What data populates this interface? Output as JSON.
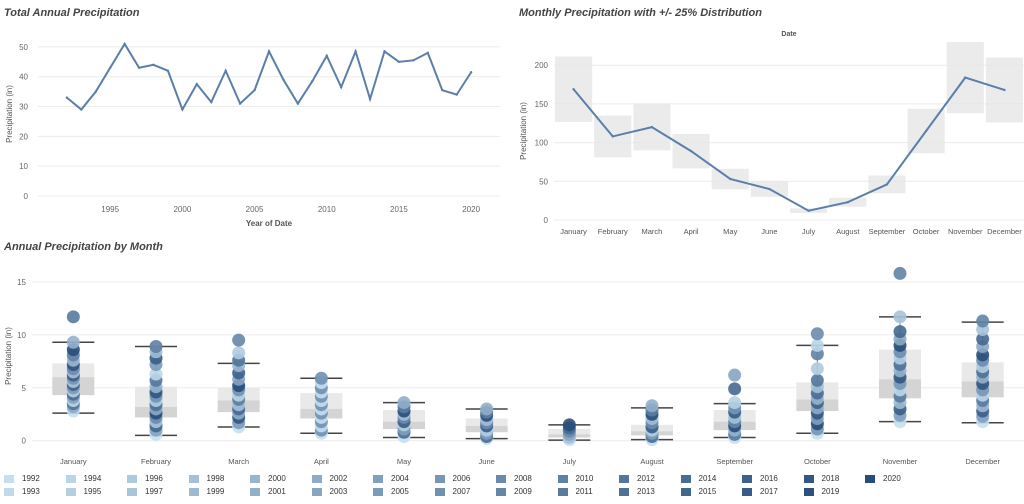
{
  "chart_data": [
    {
      "type": "line",
      "title": "Total Annual Precipitation",
      "xlabel": "Year of Date",
      "ylabel": "Precipitation (in)",
      "x": [
        1992,
        1993,
        1994,
        1995,
        1996,
        1997,
        1998,
        1999,
        2000,
        2001,
        2002,
        2003,
        2004,
        2005,
        2006,
        2007,
        2008,
        2009,
        2010,
        2011,
        2012,
        2013,
        2014,
        2015,
        2016,
        2017,
        2018,
        2019,
        2020
      ],
      "values": [
        33,
        29,
        35,
        43,
        51,
        43,
        44,
        42,
        29,
        37.5,
        31.5,
        42,
        31,
        35.5,
        48.5,
        39,
        31,
        38.5,
        47,
        36.5,
        48.5,
        32.5,
        48.5,
        45,
        45.5,
        48,
        35.5,
        34,
        41.5
      ],
      "xticks": [
        "1995",
        "2000",
        "2005",
        "2010",
        "2015",
        "2020"
      ],
      "yticks": [
        "0",
        "10",
        "20",
        "30",
        "40",
        "50"
      ],
      "ylim": [
        0,
        55
      ],
      "color": "#5b7fa8"
    },
    {
      "type": "line",
      "title": "Monthly Precipitation with +/- 25% Distribution",
      "top_label": "Date",
      "ylabel": "Precipitation (in)",
      "categories": [
        "January",
        "February",
        "March",
        "April",
        "May",
        "June",
        "July",
        "August",
        "September",
        "October",
        "November",
        "December"
      ],
      "values": [
        169,
        108,
        120,
        89,
        53,
        40,
        12,
        23,
        46,
        115,
        184,
        168
      ],
      "band": "+/- 25%",
      "yticks": [
        "0",
        "50",
        "100",
        "150",
        "200"
      ],
      "ylim": [
        0,
        230
      ],
      "color": "#5b7fa8",
      "band_color": "#e6e6e6"
    },
    {
      "type": "scatter",
      "title": "Annual Precipitation by Month",
      "ylabel": "Precipitation (in)",
      "categories": [
        "January",
        "February",
        "March",
        "April",
        "May",
        "June",
        "July",
        "August",
        "September",
        "October",
        "November",
        "December"
      ],
      "yticks": [
        "0",
        "5",
        "10",
        "15"
      ],
      "ylim": [
        -0.5,
        16.5
      ],
      "boxes": [
        {
          "q1": 4.3,
          "median": 6.0,
          "q3": 7.3,
          "lo": 2.6,
          "hi": 9.3
        },
        {
          "q1": 2.2,
          "median": 3.2,
          "q3": 5.1,
          "lo": 0.5,
          "hi": 8.9
        },
        {
          "q1": 2.7,
          "median": 3.8,
          "q3": 5.0,
          "lo": 1.3,
          "hi": 7.3
        },
        {
          "q1": 2.1,
          "median": 3.0,
          "q3": 4.5,
          "lo": 0.7,
          "hi": 5.9
        },
        {
          "q1": 1.1,
          "median": 1.8,
          "q3": 2.9,
          "lo": 0.3,
          "hi": 3.6
        },
        {
          "q1": 0.8,
          "median": 1.4,
          "q3": 2.1,
          "lo": 0.2,
          "hi": 3.0
        },
        {
          "q1": 0.3,
          "median": 0.6,
          "q3": 1.1,
          "lo": 0.05,
          "hi": 1.5
        },
        {
          "q1": 0.5,
          "median": 0.9,
          "q3": 1.5,
          "lo": 0.1,
          "hi": 3.1
        },
        {
          "q1": 1.0,
          "median": 1.8,
          "q3": 2.9,
          "lo": 0.3,
          "hi": 3.5
        },
        {
          "q1": 2.8,
          "median": 3.9,
          "q3": 5.5,
          "lo": 0.7,
          "hi": 9.0
        },
        {
          "q1": 4.0,
          "median": 5.8,
          "q3": 8.6,
          "lo": 1.8,
          "hi": 11.7
        },
        {
          "q1": 4.1,
          "median": 5.6,
          "q3": 7.4,
          "lo": 1.7,
          "hi": 11.2
        }
      ],
      "points": [
        [
          11.7,
          9.3,
          8.6,
          8.1,
          7.6,
          7.2,
          6.8,
          6.5,
          6.2,
          5.9,
          5.6,
          5.3,
          5.0,
          4.7,
          4.4,
          4.1,
          3.8,
          3.5,
          3.2,
          2.8
        ],
        [
          8.9,
          8.4,
          7.8,
          7.2,
          6.3,
          5.7,
          5.1,
          4.6,
          4.2,
          3.8,
          3.4,
          3.0,
          2.6,
          2.2,
          1.8,
          1.4,
          1.0,
          0.6
        ],
        [
          9.5,
          8.3,
          7.6,
          7.1,
          6.4,
          5.8,
          5.2,
          4.8,
          4.3,
          3.9,
          3.4,
          3.0,
          2.6,
          2.2,
          1.7,
          1.3
        ],
        [
          5.9,
          5.5,
          5.0,
          4.6,
          4.2,
          3.8,
          3.4,
          3.0,
          2.6,
          2.2,
          1.8,
          1.4,
          1.0,
          0.7
        ],
        [
          3.6,
          3.2,
          2.8,
          2.5,
          2.2,
          1.8,
          1.5,
          1.1,
          0.8,
          0.4
        ],
        [
          3.0,
          2.7,
          2.4,
          2.0,
          1.7,
          1.4,
          1.0,
          0.7,
          0.4,
          0.2
        ],
        [
          1.5,
          1.2,
          0.9,
          0.6,
          0.3,
          0.1
        ],
        [
          3.3,
          2.9,
          2.5,
          2.1,
          1.7,
          1.3,
          1.0,
          0.7,
          0.4,
          0.1
        ],
        [
          6.2,
          4.9,
          3.6,
          3.1,
          2.7,
          2.2,
          1.8,
          1.4,
          1.0,
          0.6,
          0.3
        ],
        [
          10.1,
          9.0,
          8.2,
          6.8,
          5.7,
          5.1,
          4.5,
          4.0,
          3.6,
          3.1,
          2.6,
          2.1,
          1.6,
          1.1,
          0.7
        ],
        [
          15.8,
          11.7,
          10.3,
          9.6,
          9.0,
          8.4,
          7.8,
          7.2,
          6.6,
          6.0,
          5.4,
          4.8,
          4.2,
          3.6,
          3.0,
          2.4,
          1.8
        ],
        [
          11.3,
          10.5,
          9.6,
          8.9,
          8.1,
          7.6,
          7.0,
          6.5,
          6.0,
          5.4,
          4.8,
          4.3,
          3.8,
          3.3,
          2.8,
          2.3,
          1.8
        ]
      ]
    }
  ],
  "legend": {
    "years": [
      "1992",
      "1993",
      "1994",
      "1995",
      "1996",
      "1997",
      "1998",
      "1999",
      "2000",
      "2001",
      "2002",
      "2003",
      "2004",
      "2005",
      "2006",
      "2007",
      "2008",
      "2009",
      "2010",
      "2011",
      "2012",
      "2013",
      "2014",
      "2015",
      "2016",
      "2017",
      "2018",
      "2019",
      "2020"
    ],
    "color_light": "#c5dff0",
    "color_dark": "#274c7a"
  }
}
